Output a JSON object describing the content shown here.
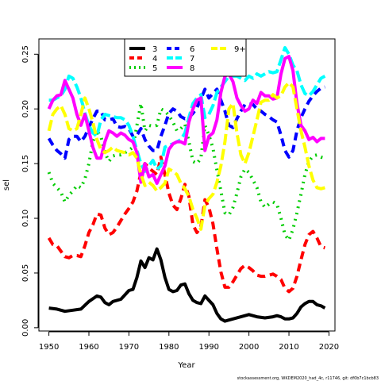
{
  "chart_data": {
    "type": "line",
    "title": "",
    "xlabel": "Year",
    "ylabel": "sel",
    "xlim": [
      1947.5,
      2021.5
    ],
    "ylim": [
      -0.003,
      0.264
    ],
    "xticks": [
      1950,
      1960,
      1970,
      1980,
      1990,
      2000,
      2010,
      2020
    ],
    "yticks": [
      0.0,
      0.05,
      0.1,
      0.15,
      0.2,
      0.25
    ],
    "ytick_labels": [
      "0.00",
      "0.05",
      "0.10",
      "0.15",
      "0.20",
      "0.25"
    ],
    "legend_position": "top-center",
    "footer": "stockassessment.org, WKDEM2020_had_4c, r11746, git: df0b7c1bcb83",
    "series": [
      {
        "name": "3",
        "color": "#000000",
        "dash": "solid",
        "x": [
          1950,
          1952,
          1954,
          1956,
          1958,
          1960,
          1962,
          1963,
          1964,
          1965,
          1966,
          1968,
          1969,
          1970,
          1971,
          1972,
          1973,
          1974,
          1975,
          1976,
          1977,
          1978,
          1979,
          1980,
          1981,
          1982,
          1983,
          1984,
          1985,
          1986,
          1987,
          1988,
          1989,
          1990,
          1991,
          1992,
          1993,
          1994,
          1995,
          1996,
          1998,
          2000,
          2002,
          2004,
          2006,
          2007,
          2008,
          2009,
          2010,
          2011,
          2012,
          2013,
          2014,
          2015,
          2016,
          2017,
          2018,
          2019
        ],
        "y": [
          0.018,
          0.017,
          0.015,
          0.016,
          0.017,
          0.024,
          0.029,
          0.028,
          0.023,
          0.021,
          0.024,
          0.026,
          0.03,
          0.034,
          0.035,
          0.046,
          0.061,
          0.055,
          0.064,
          0.062,
          0.072,
          0.062,
          0.046,
          0.035,
          0.033,
          0.034,
          0.039,
          0.04,
          0.031,
          0.025,
          0.023,
          0.022,
          0.029,
          0.025,
          0.021,
          0.013,
          0.008,
          0.006,
          0.007,
          0.008,
          0.01,
          0.012,
          0.01,
          0.009,
          0.01,
          0.011,
          0.01,
          0.008,
          0.008,
          0.009,
          0.013,
          0.019,
          0.022,
          0.024,
          0.024,
          0.021,
          0.02,
          0.018
        ]
      },
      {
        "name": "4",
        "color": "#ff0000",
        "dash": "dashed",
        "x": [
          1950,
          1951,
          1952,
          1953,
          1954,
          1955,
          1956,
          1957,
          1958,
          1959,
          1960,
          1961,
          1962,
          1963,
          1964,
          1965,
          1966,
          1967,
          1968,
          1969,
          1970,
          1971,
          1972,
          1973,
          1974,
          1975,
          1976,
          1977,
          1978,
          1979,
          1980,
          1981,
          1982,
          1983,
          1984,
          1985,
          1986,
          1987,
          1988,
          1989,
          1990,
          1991,
          1992,
          1993,
          1994,
          1995,
          1996,
          1997,
          1998,
          1999,
          2000,
          2001,
          2002,
          2003,
          2004,
          2005,
          2006,
          2007,
          2008,
          2009,
          2010,
          2011,
          2012,
          2013,
          2014,
          2015,
          2016,
          2017,
          2018,
          2019
        ],
        "y": [
          0.082,
          0.076,
          0.075,
          0.07,
          0.065,
          0.064,
          0.066,
          0.066,
          0.065,
          0.075,
          0.087,
          0.094,
          0.104,
          0.103,
          0.091,
          0.085,
          0.087,
          0.092,
          0.098,
          0.104,
          0.109,
          0.115,
          0.125,
          0.142,
          0.15,
          0.146,
          0.143,
          0.14,
          0.156,
          0.14,
          0.123,
          0.112,
          0.108,
          0.118,
          0.131,
          0.12,
          0.094,
          0.087,
          0.092,
          0.117,
          0.11,
          0.095,
          0.072,
          0.051,
          0.037,
          0.037,
          0.042,
          0.048,
          0.054,
          0.057,
          0.055,
          0.052,
          0.048,
          0.047,
          0.047,
          0.048,
          0.049,
          0.047,
          0.044,
          0.036,
          0.033,
          0.036,
          0.047,
          0.062,
          0.076,
          0.085,
          0.088,
          0.082,
          0.074,
          0.073
        ]
      },
      {
        "name": "5",
        "color": "#00cd00",
        "dash": "dotted",
        "x": [
          1950,
          1951,
          1952,
          1953,
          1954,
          1955,
          1956,
          1957,
          1958,
          1959,
          1960,
          1961,
          1962,
          1963,
          1964,
          1965,
          1966,
          1967,
          1968,
          1969,
          1970,
          1971,
          1972,
          1973,
          1974,
          1975,
          1976,
          1977,
          1978,
          1979,
          1980,
          1981,
          1982,
          1983,
          1984,
          1985,
          1986,
          1987,
          1988,
          1989,
          1990,
          1991,
          1992,
          1993,
          1994,
          1995,
          1996,
          1997,
          1998,
          1999,
          2000,
          2001,
          2002,
          2003,
          2004,
          2005,
          2006,
          2007,
          2008,
          2009,
          2010,
          2011,
          2012,
          2013,
          2014,
          2015,
          2016,
          2017,
          2018,
          2019
        ],
        "y": [
          0.142,
          0.132,
          0.128,
          0.124,
          0.115,
          0.121,
          0.125,
          0.13,
          0.128,
          0.136,
          0.15,
          0.17,
          0.18,
          0.175,
          0.16,
          0.152,
          0.157,
          0.158,
          0.158,
          0.16,
          0.162,
          0.165,
          0.185,
          0.205,
          0.18,
          0.185,
          0.184,
          0.185,
          0.2,
          0.198,
          0.194,
          0.188,
          0.18,
          0.182,
          0.186,
          0.17,
          0.152,
          0.15,
          0.155,
          0.185,
          0.176,
          0.164,
          0.144,
          0.125,
          0.105,
          0.103,
          0.11,
          0.123,
          0.138,
          0.145,
          0.142,
          0.135,
          0.128,
          0.115,
          0.11,
          0.113,
          0.115,
          0.113,
          0.1,
          0.085,
          0.08,
          0.09,
          0.105,
          0.122,
          0.14,
          0.152,
          0.157,
          0.158,
          0.156,
          0.155
        ]
      },
      {
        "name": "6",
        "color": "#0000ff",
        "dash": "dashed",
        "x": [
          1950,
          1951,
          1952,
          1953,
          1954,
          1955,
          1956,
          1957,
          1958,
          1959,
          1960,
          1961,
          1962,
          1963,
          1964,
          1965,
          1966,
          1967,
          1968,
          1969,
          1970,
          1971,
          1972,
          1973,
          1974,
          1975,
          1976,
          1977,
          1978,
          1979,
          1980,
          1981,
          1982,
          1983,
          1984,
          1985,
          1986,
          1987,
          1988,
          1989,
          1990,
          1991,
          1992,
          1993,
          1994,
          1995,
          1996,
          1997,
          1998,
          1999,
          2000,
          2001,
          2002,
          2003,
          2004,
          2005,
          2006,
          2007,
          2008,
          2009,
          2010,
          2011,
          2012,
          2013,
          2014,
          2015,
          2016,
          2017,
          2018,
          2019
        ],
        "y": [
          0.173,
          0.167,
          0.162,
          0.159,
          0.155,
          0.172,
          0.175,
          0.175,
          0.17,
          0.175,
          0.183,
          0.191,
          0.198,
          0.198,
          0.19,
          0.19,
          0.191,
          0.184,
          0.183,
          0.184,
          0.182,
          0.175,
          0.176,
          0.182,
          0.172,
          0.166,
          0.162,
          0.162,
          0.175,
          0.185,
          0.196,
          0.2,
          0.198,
          0.193,
          0.191,
          0.192,
          0.196,
          0.201,
          0.209,
          0.218,
          0.21,
          0.214,
          0.218,
          0.208,
          0.198,
          0.185,
          0.183,
          0.191,
          0.198,
          0.204,
          0.205,
          0.204,
          0.2,
          0.198,
          0.195,
          0.193,
          0.19,
          0.188,
          0.176,
          0.162,
          0.156,
          0.162,
          0.18,
          0.192,
          0.2,
          0.207,
          0.212,
          0.216,
          0.219,
          0.22
        ]
      },
      {
        "name": "7",
        "color": "#00ffff",
        "dash": "longdash",
        "x": [
          1950,
          1951,
          1952,
          1953,
          1954,
          1955,
          1956,
          1957,
          1958,
          1959,
          1960,
          1961,
          1962,
          1963,
          1964,
          1965,
          1966,
          1967,
          1968,
          1969,
          1970,
          1971,
          1972,
          1973,
          1974,
          1975,
          1976,
          1977,
          1978,
          1979,
          1980,
          1981,
          1982,
          1983,
          1984,
          1985,
          1986,
          1987,
          1988,
          1989,
          1990,
          1991,
          1992,
          1993,
          1994,
          1995,
          1996,
          1997,
          1998,
          1999,
          2000,
          2001,
          2002,
          2003,
          2004,
          2005,
          2006,
          2007,
          2008,
          2009,
          2010,
          2011,
          2012,
          2013,
          2014,
          2015,
          2016,
          2017,
          2018,
          2019
        ],
        "y": [
          0.208,
          0.208,
          0.21,
          0.212,
          0.218,
          0.23,
          0.228,
          0.22,
          0.21,
          0.196,
          0.185,
          0.178,
          0.175,
          0.19,
          0.195,
          0.194,
          0.193,
          0.192,
          0.192,
          0.19,
          0.185,
          0.175,
          0.162,
          0.15,
          0.143,
          0.148,
          0.153,
          0.145,
          0.148,
          0.165,
          0.167,
          0.168,
          0.17,
          0.172,
          0.178,
          0.192,
          0.205,
          0.21,
          0.213,
          0.192,
          0.195,
          0.203,
          0.215,
          0.22,
          0.225,
          0.23,
          0.23,
          0.23,
          0.228,
          0.226,
          0.23,
          0.228,
          0.232,
          0.23,
          0.232,
          0.234,
          0.233,
          0.234,
          0.245,
          0.256,
          0.25,
          0.24,
          0.235,
          0.222,
          0.214,
          0.212,
          0.216,
          0.222,
          0.228,
          0.23
        ]
      },
      {
        "name": "8",
        "color": "#ff00ff",
        "dash": "solid",
        "x": [
          1950,
          1951,
          1952,
          1953,
          1954,
          1955,
          1956,
          1957,
          1958,
          1959,
          1960,
          1961,
          1962,
          1963,
          1964,
          1965,
          1966,
          1967,
          1968,
          1969,
          1970,
          1971,
          1972,
          1973,
          1974,
          1975,
          1976,
          1977,
          1978,
          1979,
          1980,
          1981,
          1982,
          1983,
          1984,
          1985,
          1986,
          1987,
          1988,
          1989,
          1990,
          1991,
          1992,
          1993,
          1994,
          1995,
          1996,
          1997,
          1998,
          1999,
          2000,
          2001,
          2002,
          2003,
          2004,
          2005,
          2006,
          2007,
          2008,
          2009,
          2010,
          2011,
          2012,
          2013,
          2014,
          2015,
          2016,
          2017,
          2018,
          2019
        ],
        "y": [
          0.2,
          0.208,
          0.212,
          0.213,
          0.226,
          0.218,
          0.21,
          0.195,
          0.185,
          0.195,
          0.18,
          0.165,
          0.155,
          0.155,
          0.17,
          0.18,
          0.178,
          0.175,
          0.178,
          0.176,
          0.172,
          0.17,
          0.16,
          0.133,
          0.15,
          0.138,
          0.14,
          0.132,
          0.14,
          0.148,
          0.163,
          0.168,
          0.17,
          0.17,
          0.168,
          0.188,
          0.2,
          0.208,
          0.21,
          0.162,
          0.175,
          0.178,
          0.19,
          0.215,
          0.23,
          0.232,
          0.225,
          0.21,
          0.203,
          0.198,
          0.2,
          0.208,
          0.205,
          0.215,
          0.212,
          0.212,
          0.209,
          0.21,
          0.232,
          0.246,
          0.248,
          0.235,
          0.205,
          0.185,
          0.18,
          0.172,
          0.174,
          0.17,
          0.173,
          0.173
        ]
      },
      {
        "name": "9+",
        "color": "#ffff00",
        "dash": "longdash",
        "x": [
          1950,
          1951,
          1952,
          1953,
          1954,
          1955,
          1956,
          1957,
          1958,
          1959,
          1960,
          1961,
          1962,
          1963,
          1964,
          1965,
          1966,
          1967,
          1968,
          1969,
          1970,
          1971,
          1972,
          1973,
          1974,
          1975,
          1976,
          1977,
          1978,
          1979,
          1980,
          1981,
          1982,
          1983,
          1984,
          1985,
          1986,
          1987,
          1988,
          1989,
          1990,
          1991,
          1992,
          1993,
          1994,
          1995,
          1996,
          1997,
          1998,
          1999,
          2000,
          2001,
          2002,
          2003,
          2004,
          2005,
          2006,
          2007,
          2008,
          2009,
          2010,
          2011,
          2012,
          2013,
          2014,
          2015,
          2016,
          2017,
          2018,
          2019
        ],
        "y": [
          0.18,
          0.195,
          0.2,
          0.203,
          0.195,
          0.182,
          0.18,
          0.182,
          0.195,
          0.21,
          0.2,
          0.188,
          0.172,
          0.163,
          0.16,
          0.162,
          0.165,
          0.162,
          0.161,
          0.16,
          0.158,
          0.16,
          0.155,
          0.14,
          0.13,
          0.133,
          0.13,
          0.125,
          0.128,
          0.132,
          0.145,
          0.143,
          0.14,
          0.132,
          0.127,
          0.12,
          0.108,
          0.1,
          0.09,
          0.112,
          0.118,
          0.122,
          0.133,
          0.148,
          0.17,
          0.2,
          0.205,
          0.178,
          0.158,
          0.15,
          0.16,
          0.175,
          0.19,
          0.206,
          0.208,
          0.208,
          0.213,
          0.21,
          0.212,
          0.22,
          0.224,
          0.22,
          0.2,
          0.18,
          0.165,
          0.148,
          0.135,
          0.128,
          0.127,
          0.128
        ]
      }
    ]
  }
}
